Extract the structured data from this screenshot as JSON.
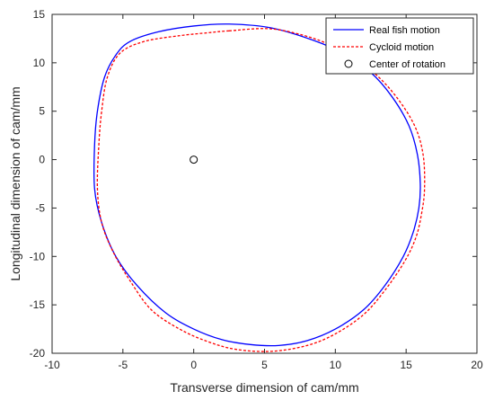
{
  "chart_data": {
    "type": "line",
    "xlabel": "Transverse dimension of cam/mm",
    "ylabel": "Longitudinal dimension of cam/mm",
    "xlim": [
      -10,
      20
    ],
    "ylim": [
      -20,
      15
    ],
    "xticks": [
      -10,
      -5,
      0,
      5,
      10,
      15,
      20
    ],
    "yticks": [
      -20,
      -15,
      -10,
      -5,
      0,
      5,
      10,
      15
    ],
    "grid": false,
    "legend_position": "top-right",
    "series": [
      {
        "name": "Real fish motion",
        "color": "#0000ff",
        "style": "solid",
        "x": [
          2.5,
          5.5,
          8.5,
          10.5,
          12.5,
          14.0,
          15.2,
          15.8,
          16.0,
          15.9,
          15.5,
          14.8,
          13.5,
          12.0,
          10.0,
          8.0,
          6.0,
          4.0,
          2.0,
          0.0,
          -2.0,
          -4.0,
          -5.5,
          -6.5,
          -7.0,
          -7.0,
          -6.8,
          -6.3,
          -5.5,
          -4.5,
          -2.5,
          0.0,
          2.5
        ],
        "y": [
          14.0,
          13.6,
          12.3,
          11.0,
          9.0,
          6.5,
          3.5,
          0.5,
          -2.5,
          -5.0,
          -7.5,
          -10.0,
          -13.0,
          -15.5,
          -17.5,
          -18.7,
          -19.2,
          -19.1,
          -18.6,
          -17.5,
          -15.8,
          -13.0,
          -10.0,
          -6.5,
          -3.0,
          1.5,
          5.0,
          8.5,
          10.8,
          12.2,
          13.2,
          13.8,
          14.0
        ]
      },
      {
        "name": "Cycloid motion",
        "color": "#ff0000",
        "style": "dashed",
        "x": [
          2.5,
          5.5,
          8.5,
          10.7,
          12.7,
          14.3,
          15.6,
          16.2,
          16.3,
          16.1,
          15.7,
          14.9,
          13.5,
          12.0,
          10.0,
          8.0,
          5.5,
          3.0,
          1.0,
          -1.0,
          -3.0,
          -4.5,
          -5.7,
          -6.5,
          -6.8,
          -6.7,
          -6.5,
          -6.1,
          -5.2,
          -3.5,
          -1.0,
          1.0,
          2.5
        ],
        "y": [
          13.3,
          13.5,
          12.5,
          11.0,
          9.0,
          6.5,
          3.5,
          0.5,
          -3.0,
          -5.5,
          -8.0,
          -10.5,
          -13.5,
          -16.0,
          -18.0,
          -19.2,
          -19.8,
          -19.6,
          -18.8,
          -17.5,
          -15.5,
          -12.5,
          -9.5,
          -6.5,
          -3.0,
          1.5,
          5.0,
          8.5,
          11.0,
          12.2,
          12.8,
          13.1,
          13.3
        ]
      }
    ],
    "center": {
      "name": "Center of rotation",
      "x": 0,
      "y": 0,
      "marker": "circle"
    }
  }
}
